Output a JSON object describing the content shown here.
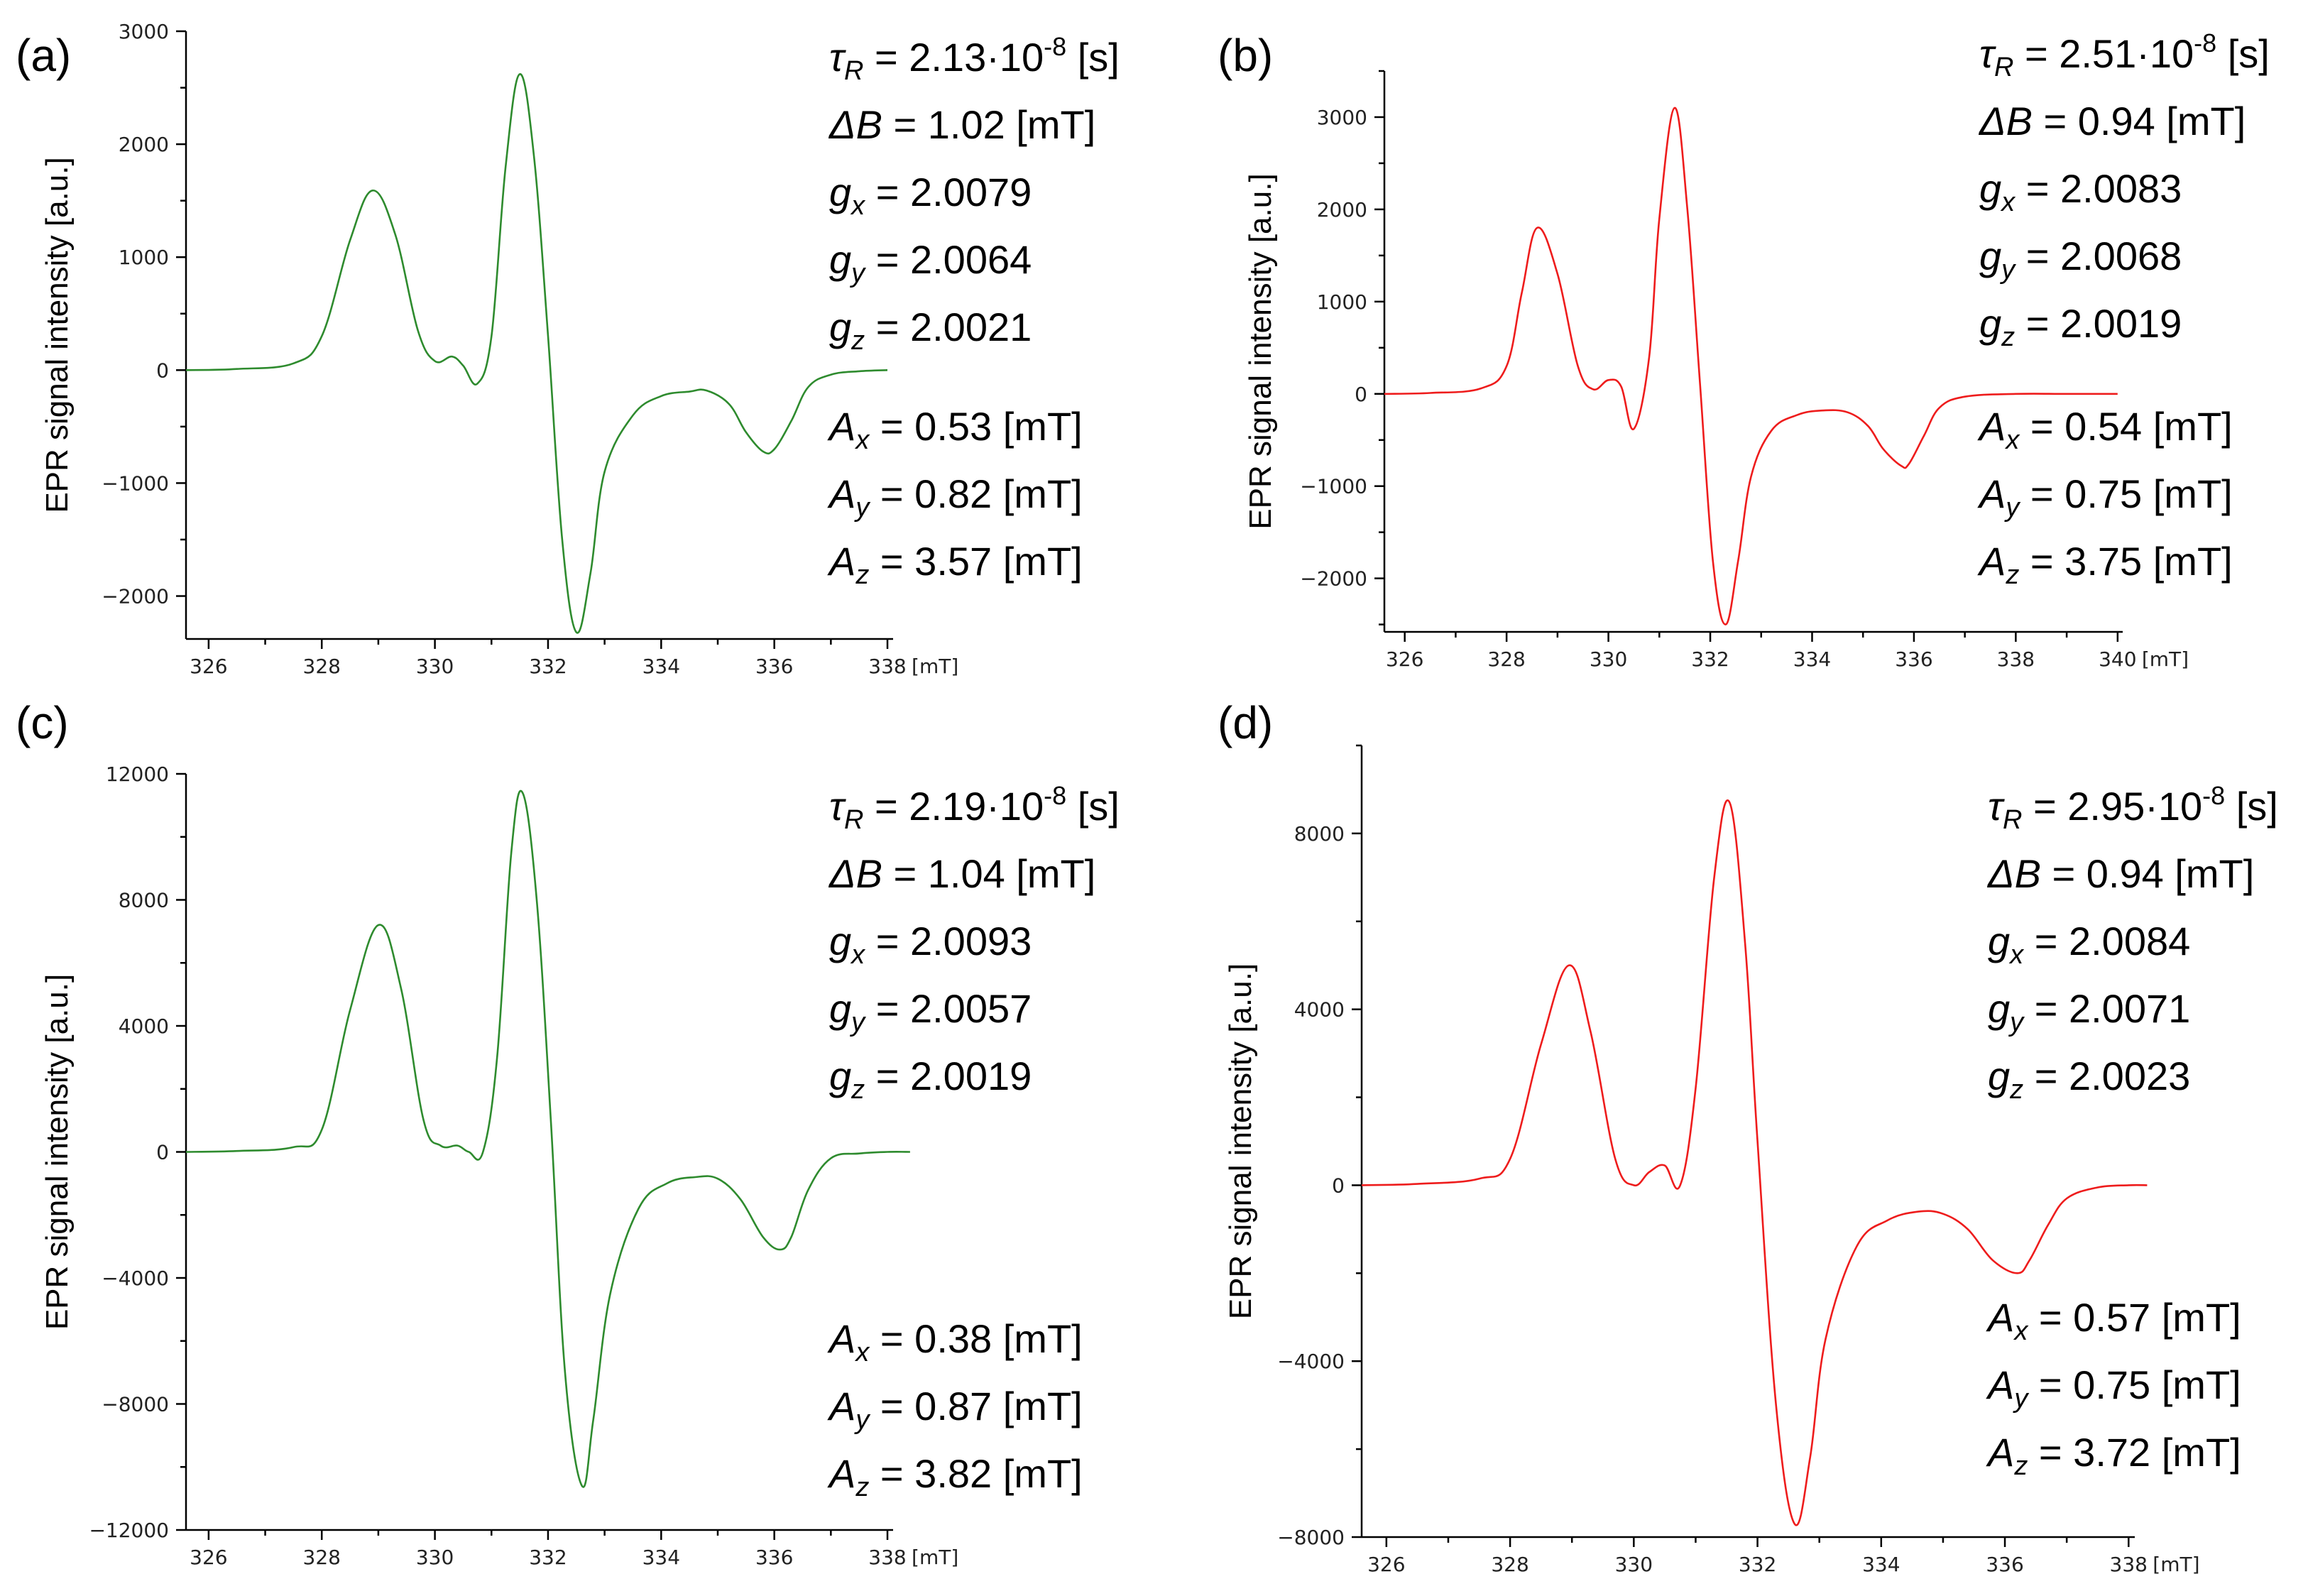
{
  "chart_data": [
    {
      "type": "line",
      "panel_label": "(a)",
      "xlabel": "",
      "x_unit": "[mT]",
      "ylabel": "EPR signal intensity [a.u.]",
      "xlim": [
        325.6,
        338.1
      ],
      "ylim": [
        -2380,
        3000
      ],
      "xticks": [
        326,
        328,
        330,
        332,
        334,
        336,
        338
      ],
      "xtick_labels": [
        "326",
        "328",
        "330",
        "332",
        "334",
        "336",
        "338"
      ],
      "yticks": [
        3000,
        2000,
        1000,
        0,
        -1000,
        -2000
      ],
      "ytick_labels": [
        "3000",
        "2000",
        "1000",
        "0",
        "−1000",
        "−2000"
      ],
      "grid": false,
      "color": "#2e8b2e",
      "series": [
        {
          "name": "EPR spectrum (a)",
          "x": [
            325.6,
            326.5,
            327.5,
            328.0,
            328.5,
            328.9,
            329.3,
            329.7,
            330.0,
            330.3,
            330.5,
            330.75,
            331.0,
            331.25,
            331.5,
            331.75,
            332.0,
            332.25,
            332.5,
            332.75,
            333.0,
            333.5,
            334.0,
            334.5,
            334.8,
            335.2,
            335.5,
            335.8,
            336.0,
            336.3,
            336.6,
            337.0,
            337.5,
            338.0
          ],
          "y": [
            0,
            10,
            60,
            300,
            1150,
            1590,
            1200,
            350,
            80,
            120,
            40,
            -120,
            300,
            1800,
            2620,
            1900,
            300,
            -1500,
            -2320,
            -1800,
            -900,
            -400,
            -230,
            -190,
            -180,
            -300,
            -550,
            -720,
            -700,
            -450,
            -150,
            -40,
            -10,
            0
          ]
        }
      ],
      "annotations": [
        {
          "symbol": "τ",
          "sub": "R",
          "text": " = 2.13·10",
          "sup": "-8",
          "tail": " [s]"
        },
        {
          "symbol": "ΔB",
          "sub": "",
          "text": " = 1.02 [mT]",
          "sup": "",
          "tail": ""
        },
        {
          "symbol": "g",
          "sub": "x",
          "text": " = 2.0079",
          "sup": "",
          "tail": ""
        },
        {
          "symbol": "g",
          "sub": "y",
          "text": " = 2.0064",
          "sup": "",
          "tail": ""
        },
        {
          "symbol": "g",
          "sub": "z",
          "text": " = 2.0021",
          "sup": "",
          "tail": ""
        },
        {
          "symbol": "A",
          "sub": "x",
          "text": " = 0.53 [mT]",
          "sup": "",
          "tail": ""
        },
        {
          "symbol": "A",
          "sub": "y",
          "text": " = 0.82 [mT]",
          "sup": "",
          "tail": ""
        },
        {
          "symbol": "A",
          "sub": "z",
          "text": " = 3.57 [mT]",
          "sup": "",
          "tail": ""
        }
      ]
    },
    {
      "type": "line",
      "panel_label": "(b)",
      "xlabel": "",
      "x_unit": "[mT]",
      "ylabel": "EPR signal intensity [a.u.]",
      "xlim": [
        325.6,
        340.1
      ],
      "ylim": [
        -2580,
        3500
      ],
      "xticks": [
        326,
        328,
        330,
        332,
        334,
        336,
        338,
        340
      ],
      "xtick_labels": [
        "326",
        "328",
        "330",
        "332",
        "334",
        "336",
        "338",
        "340"
      ],
      "yticks": [
        3000,
        2000,
        1000,
        0,
        -1000,
        -2000
      ],
      "ytick_labels": [
        "3000",
        "2000",
        "1000",
        "0",
        "−1000",
        "−2000"
      ],
      "grid": false,
      "color": "#ee1c1c",
      "series": [
        {
          "name": "EPR spectrum (b)",
          "x": [
            325.6,
            326.5,
            327.5,
            328.0,
            328.3,
            328.6,
            329.0,
            329.4,
            329.7,
            330.0,
            330.25,
            330.5,
            330.8,
            331.0,
            331.3,
            331.55,
            331.8,
            332.05,
            332.3,
            332.55,
            332.8,
            333.2,
            333.7,
            334.2,
            334.7,
            335.1,
            335.4,
            335.75,
            335.9,
            336.2,
            336.5,
            337.0,
            338.0,
            339.0,
            340.0
          ],
          "y": [
            0,
            10,
            60,
            300,
            1100,
            1800,
            1300,
            300,
            50,
            150,
            80,
            -380,
            400,
            1900,
            3100,
            2000,
            100,
            -1800,
            -2500,
            -1800,
            -900,
            -400,
            -230,
            -180,
            -200,
            -350,
            -600,
            -780,
            -760,
            -450,
            -150,
            -30,
            0,
            0,
            0
          ]
        }
      ],
      "annotations": [
        {
          "symbol": "τ",
          "sub": "R",
          "text": " = 2.51·10",
          "sup": "-8",
          "tail": " [s]"
        },
        {
          "symbol": "ΔB",
          "sub": "",
          "text": " = 0.94 [mT]",
          "sup": "",
          "tail": ""
        },
        {
          "symbol": "g",
          "sub": "x",
          "text": " = 2.0083",
          "sup": "",
          "tail": ""
        },
        {
          "symbol": "g",
          "sub": "y",
          "text": " = 2.0068",
          "sup": "",
          "tail": ""
        },
        {
          "symbol": "g",
          "sub": "z",
          "text": " = 2.0019",
          "sup": "",
          "tail": ""
        },
        {
          "symbol": "A",
          "sub": "x",
          "text": " = 0.54 [mT]",
          "sup": "",
          "tail": ""
        },
        {
          "symbol": "A",
          "sub": "y",
          "text": " = 0.75 [mT]",
          "sup": "",
          "tail": ""
        },
        {
          "symbol": "A",
          "sub": "z",
          "text": " = 3.75 [mT]",
          "sup": "",
          "tail": ""
        }
      ]
    },
    {
      "type": "line",
      "panel_label": "(c)",
      "xlabel": "",
      "x_unit": "[mT]",
      "ylabel": "EPR signal intensity [a.u.]",
      "xlim": [
        325.6,
        338.1
      ],
      "ylim": [
        -12000,
        12000
      ],
      "xticks": [
        326,
        328,
        330,
        332,
        334,
        336,
        338
      ],
      "xtick_labels": [
        "326",
        "328",
        "330",
        "332",
        "334",
        "336",
        "338"
      ],
      "yticks": [
        12000,
        8000,
        4000,
        0,
        -4000,
        -8000,
        -12000
      ],
      "ytick_labels": [
        "12000",
        "8000",
        "4000",
        "0",
        "−4000",
        "−8000",
        "−12000"
      ],
      "grid": false,
      "color": "#2e8b2e",
      "series": [
        {
          "name": "EPR spectrum (c)",
          "x": [
            325.6,
            326.5,
            327.5,
            328.0,
            328.5,
            329.0,
            329.4,
            329.8,
            330.1,
            330.4,
            330.6,
            330.85,
            331.1,
            331.35,
            331.55,
            331.8,
            332.05,
            332.3,
            332.6,
            332.8,
            333.1,
            333.6,
            334.1,
            334.6,
            335.0,
            335.4,
            335.8,
            336.1,
            336.3,
            336.6,
            337.0,
            337.5,
            338.0,
            338.4
          ],
          "y": [
            0,
            30,
            150,
            700,
            4500,
            7200,
            5200,
            1000,
            200,
            200,
            0,
            0,
            3000,
            9500,
            11400,
            8000,
            1000,
            -7000,
            -10600,
            -8500,
            -4500,
            -1800,
            -1000,
            -800,
            -850,
            -1500,
            -2700,
            -3100,
            -2700,
            -1200,
            -200,
            -50,
            0,
            0
          ]
        }
      ],
      "annotations": [
        {
          "symbol": "τ",
          "sub": "R",
          "text": " = 2.19·10",
          "sup": "-8",
          "tail": " [s]"
        },
        {
          "symbol": "ΔB",
          "sub": "",
          "text": " = 1.04 [mT]",
          "sup": "",
          "tail": ""
        },
        {
          "symbol": "g",
          "sub": "x",
          "text": " = 2.0093",
          "sup": "",
          "tail": ""
        },
        {
          "symbol": "g",
          "sub": "y",
          "text": " = 2.0057",
          "sup": "",
          "tail": ""
        },
        {
          "symbol": "g",
          "sub": "z",
          "text": " = 2.0019",
          "sup": "",
          "tail": ""
        },
        {
          "symbol": "A",
          "sub": "x",
          "text": " = 0.38 [mT]",
          "sup": "",
          "tail": ""
        },
        {
          "symbol": "A",
          "sub": "y",
          "text": " = 0.87 [mT]",
          "sup": "",
          "tail": ""
        },
        {
          "symbol": "A",
          "sub": "z",
          "text": " = 3.82 [mT]",
          "sup": "",
          "tail": ""
        }
      ]
    },
    {
      "type": "line",
      "panel_label": "(d)",
      "xlabel": "",
      "x_unit": "[mT]",
      "ylabel": "EPR signal intensity [a.u.]",
      "xlim": [
        325.6,
        338.1
      ],
      "ylim": [
        -8000,
        10000
      ],
      "xticks": [
        326,
        328,
        330,
        332,
        334,
        336,
        338
      ],
      "xtick_labels": [
        "326",
        "328",
        "330",
        "332",
        "334",
        "336",
        "338"
      ],
      "yticks": [
        8000,
        4000,
        0,
        -4000,
        -8000
      ],
      "ytick_labels": [
        "8000",
        "4000",
        "0",
        "−4000",
        "−8000"
      ],
      "grid": false,
      "color": "#ee1c1c",
      "series": [
        {
          "name": "EPR spectrum (d)",
          "x": [
            325.6,
            326.5,
            327.5,
            328.0,
            328.5,
            328.95,
            329.3,
            329.7,
            330.0,
            330.25,
            330.5,
            330.75,
            331.0,
            331.3,
            331.55,
            331.8,
            332.0,
            332.3,
            332.6,
            332.85,
            333.1,
            333.6,
            334.1,
            334.6,
            335.0,
            335.4,
            335.8,
            336.2,
            336.4,
            336.7,
            337.0,
            337.5,
            338.0,
            338.3
          ],
          "y": [
            0,
            30,
            150,
            600,
            3200,
            5000,
            3500,
            600,
            0,
            300,
            450,
            0,
            2200,
            7000,
            8700,
            5500,
            1000,
            -5000,
            -7700,
            -6200,
            -3500,
            -1400,
            -800,
            -600,
            -650,
            -1000,
            -1700,
            -2000,
            -1700,
            -900,
            -300,
            -50,
            0,
            0
          ]
        }
      ],
      "annotations": [
        {
          "symbol": "τ",
          "sub": "R",
          "text": " = 2.95·10",
          "sup": "-8",
          "tail": " [s]"
        },
        {
          "symbol": "ΔB",
          "sub": "",
          "text": " = 0.94 [mT]",
          "sup": "",
          "tail": ""
        },
        {
          "symbol": "g",
          "sub": "x",
          "text": " = 2.0084",
          "sup": "",
          "tail": ""
        },
        {
          "symbol": "g",
          "sub": "y",
          "text": " = 2.0071",
          "sup": "",
          "tail": ""
        },
        {
          "symbol": "g",
          "sub": "z",
          "text": " = 2.0023",
          "sup": "",
          "tail": ""
        },
        {
          "symbol": "A",
          "sub": "x",
          "text": " = 0.57 [mT]",
          "sup": "",
          "tail": ""
        },
        {
          "symbol": "A",
          "sub": "y",
          "text": " = 0.75 [mT]",
          "sup": "",
          "tail": ""
        },
        {
          "symbol": "A",
          "sub": "z",
          "text": " = 3.72 [mT]",
          "sup": "",
          "tail": ""
        }
      ]
    }
  ]
}
